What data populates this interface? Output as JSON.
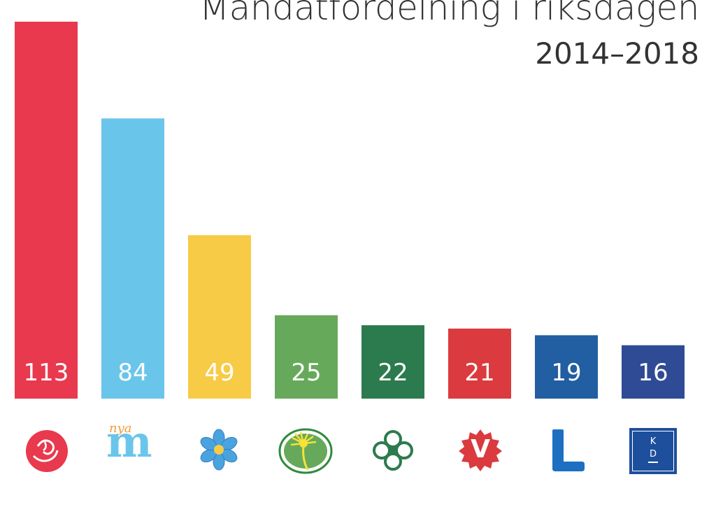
{
  "chart_data": {
    "type": "bar",
    "title": "Mandatfördelning i riksdagen",
    "subtitle": "2014–2018",
    "xlabel": "",
    "ylabel": "",
    "grid": false,
    "ylim": [
      0,
      113
    ],
    "categories": [
      "S",
      "M",
      "SD",
      "MP",
      "C",
      "V",
      "L",
      "KD"
    ],
    "values": [
      113,
      84,
      49,
      25,
      22,
      21,
      19,
      16
    ],
    "colors": [
      "#e8394e",
      "#6ac5ea",
      "#f7cb46",
      "#66a95a",
      "#2c7b4e",
      "#db3a3e",
      "#215ea2",
      "#2f4b96"
    ]
  },
  "logos": {
    "moderaterna_small_text": "nya",
    "moderaterna_letter": "m",
    "vansterpartiet_letter": "V",
    "liberalerna_letter": "L",
    "kd_text_top": "K",
    "kd_text_bottom": "D",
    "icons": [
      "socialdemokraterna-rose-icon",
      "moderaterna-logo",
      "sverigedemokraterna-flower-icon",
      "miljopartiet-dandelion-icon",
      "centerpartiet-clover-icon",
      "vansterpartiet-logo",
      "liberalerna-logo",
      "kristdemokraterna-logo"
    ]
  }
}
